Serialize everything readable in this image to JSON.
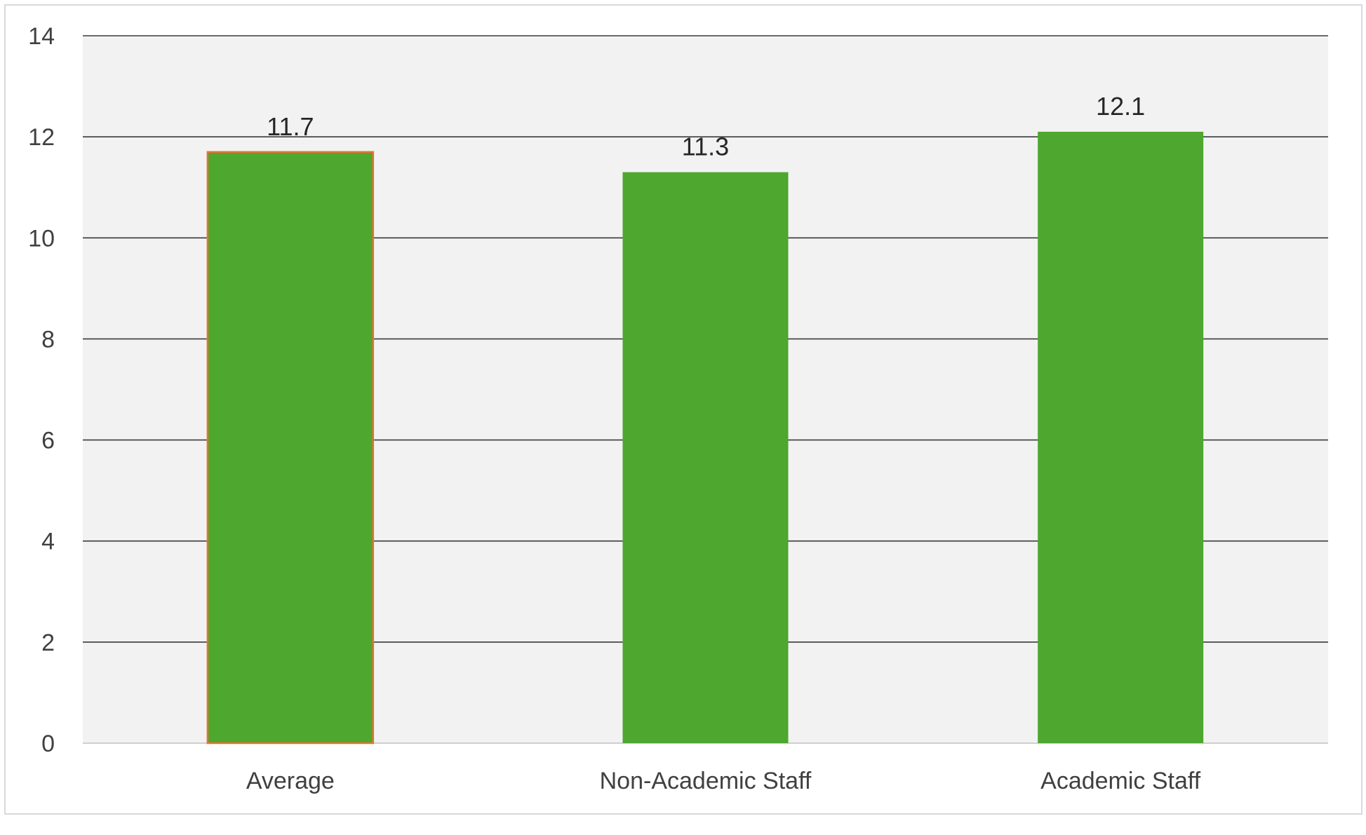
{
  "chart_data": {
    "type": "bar",
    "categories": [
      "Average",
      "Non-Academic Staff",
      "Academic Staff"
    ],
    "values": [
      11.7,
      11.3,
      12.1
    ],
    "data_labels": [
      "11.7",
      "11.3",
      "12.1"
    ],
    "title": "",
    "xlabel": "",
    "ylabel": "",
    "ylim": [
      0,
      14
    ],
    "yticks": [
      0,
      2,
      4,
      6,
      8,
      10,
      12,
      14
    ],
    "grid": true,
    "legend": "none",
    "colors": {
      "bar": "#4ea72e",
      "highlight_outline": "#e97132",
      "plot_background": "#f2f2f2",
      "gridline": "#3a3a3a"
    },
    "highlighted_category": "Average"
  }
}
